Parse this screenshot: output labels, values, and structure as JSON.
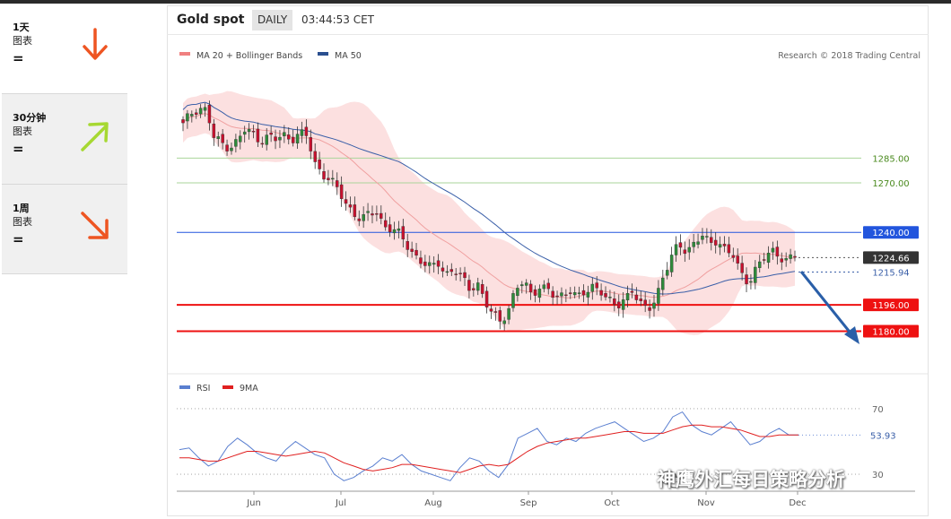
{
  "sidebar": {
    "items": [
      {
        "title": "1天",
        "subtitle": "图表",
        "signal": "=",
        "arrow": "down",
        "color": "#ee5522"
      },
      {
        "title": "30分钟",
        "subtitle": "图表",
        "signal": "=",
        "arrow": "up-right",
        "color": "#a6d832"
      },
      {
        "title": "1周",
        "subtitle": "图表",
        "signal": "=",
        "arrow": "down-right",
        "color": "#ee5522"
      }
    ]
  },
  "header": {
    "instrument": "Gold spot",
    "period": "DAILY",
    "time": "03:44:53 CET"
  },
  "legend": {
    "ma20": "MA 20 + Bollinger Bands",
    "ma50": "MA 50",
    "credit": "Research © 2018 Trading Central",
    "rsi": "RSI",
    "rsi_ma": "9MA"
  },
  "watermark": "神鹰外汇每日策略分析",
  "chart_data": [
    {
      "type": "candlestick",
      "title": "Gold spot",
      "x_ticks": [
        "Jun",
        "Jul",
        "Aug",
        "Sep",
        "Oct",
        "Nov",
        "Dec"
      ],
      "ylim": [
        1158,
        1332
      ],
      "current_price": "1224.66",
      "ma50_label": "1215.94",
      "levels": [
        {
          "value": 1285.0,
          "label": "1285.00",
          "kind": "resistance",
          "color": "#aad49a",
          "label_color": "#4a8a1e"
        },
        {
          "value": 1270.0,
          "label": "1270.00",
          "kind": "resistance",
          "color": "#aad49a",
          "label_color": "#4a8a1e"
        },
        {
          "value": 1240.0,
          "label": "1240.00",
          "kind": "pivot",
          "color": "#2255dd",
          "label_color": "#ffffff"
        },
        {
          "value": 1196.0,
          "label": "1196.00",
          "kind": "support",
          "color": "#ee1111",
          "label_color": "#ffffff"
        },
        {
          "value": 1180.0,
          "label": "1180.00",
          "kind": "support",
          "color": "#ee1111",
          "label_color": "#ffffff"
        }
      ],
      "close_path": [
        1305,
        1312,
        1316,
        1314,
        1297,
        1294,
        1292,
        1295,
        1302,
        1300,
        1296,
        1298,
        1296,
        1299,
        1297,
        1300,
        1298,
        1282,
        1276,
        1272,
        1265,
        1258,
        1252,
        1248,
        1250,
        1253,
        1244,
        1242,
        1238,
        1232,
        1226,
        1221,
        1218,
        1222,
        1215,
        1217,
        1212,
        1206,
        1210,
        1197,
        1190,
        1186,
        1194,
        1205,
        1210,
        1202,
        1208,
        1205,
        1200,
        1202,
        1206,
        1200,
        1203,
        1208,
        1205,
        1198,
        1194,
        1200,
        1206,
        1196,
        1192,
        1200,
        1214,
        1224,
        1232,
        1229,
        1234,
        1238,
        1232,
        1236,
        1230,
        1226,
        1214,
        1210,
        1219,
        1224,
        1228,
        1226,
        1224,
        1225
      ]
    },
    {
      "type": "line",
      "title": "RSI",
      "series": [
        {
          "name": "RSI"
        },
        {
          "name": "9MA"
        }
      ],
      "ylim": [
        24,
        76
      ],
      "y_ticks": [
        30,
        70
      ],
      "current_value": "53.93",
      "rsi_path": [
        45,
        46,
        40,
        35,
        38,
        47,
        52,
        48,
        43,
        40,
        38,
        45,
        50,
        46,
        42,
        40,
        30,
        26,
        28,
        32,
        35,
        40,
        38,
        42,
        36,
        32,
        30,
        28,
        26,
        34,
        40,
        38,
        32,
        28,
        36,
        52,
        55,
        58,
        50,
        48,
        52,
        50,
        55,
        58,
        60,
        62,
        58,
        54,
        50,
        52,
        56,
        65,
        68,
        60,
        56,
        54,
        58,
        62,
        55,
        48,
        50,
        55,
        58,
        54,
        53.93
      ],
      "ma9_path": [
        40,
        40,
        39,
        38,
        38,
        40,
        42,
        44,
        44,
        43,
        42,
        41,
        42,
        43,
        44,
        43,
        40,
        37,
        35,
        33,
        32,
        33,
        34,
        36,
        36,
        35,
        34,
        33,
        32,
        31,
        33,
        35,
        36,
        35,
        36,
        40,
        44,
        47,
        49,
        50,
        51,
        52,
        52,
        53,
        54,
        55,
        56,
        56,
        55,
        55,
        55,
        57,
        59,
        60,
        60,
        59,
        59,
        58,
        57,
        55,
        53,
        53,
        54,
        54,
        54
      ]
    }
  ]
}
